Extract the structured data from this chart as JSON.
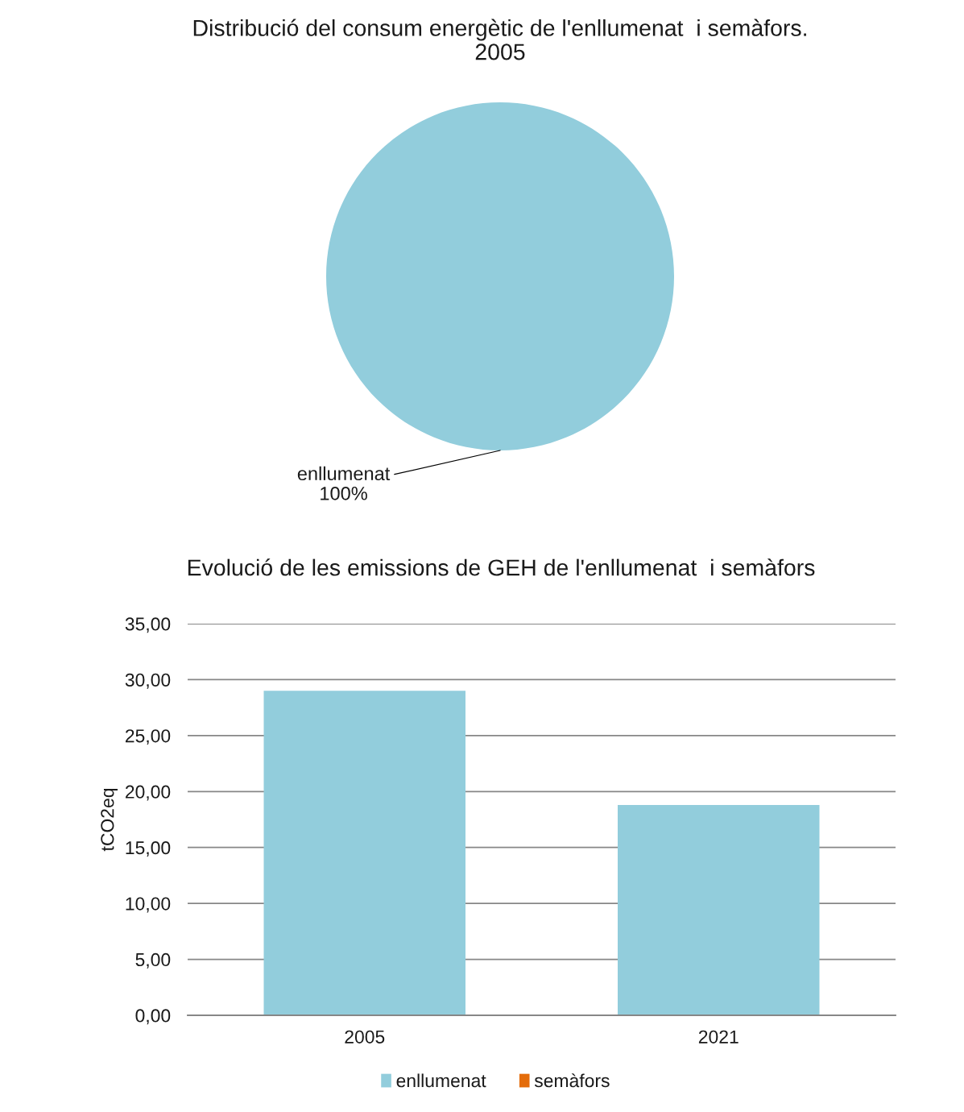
{
  "chart_data": [
    {
      "type": "pie",
      "title": "Distribució del consum energètic de l'enllumenat  i semàfors.\n2005",
      "categories": [
        "enllumenat"
      ],
      "values": [
        100
      ],
      "colors": [
        "#92cddc"
      ],
      "value_labels": [
        "100%"
      ]
    },
    {
      "type": "bar",
      "title": "Evolució de les emissions de GEH de l'enllumenat  i semàfors",
      "ylabel": "tCO2eq",
      "categories": [
        "2005",
        "2021"
      ],
      "series": [
        {
          "name": "enllumenat",
          "color": "#92cddc",
          "values": [
            29.0,
            18.8
          ]
        },
        {
          "name": "semàfors",
          "color": "#e46c0a",
          "values": [
            0,
            0
          ]
        }
      ],
      "stacked": true,
      "ylim": [
        0,
        35
      ],
      "yticks": [
        {
          "value": 0,
          "label": "0,00"
        },
        {
          "value": 5,
          "label": "5,00"
        },
        {
          "value": 10,
          "label": "10,00"
        },
        {
          "value": 15,
          "label": "15,00"
        },
        {
          "value": 20,
          "label": "20,00"
        },
        {
          "value": 25,
          "label": "25,00"
        },
        {
          "value": 30,
          "label": "30,00"
        },
        {
          "value": 35,
          "label": "35,00"
        }
      ],
      "grid": "y",
      "legend": "bottom"
    }
  ]
}
